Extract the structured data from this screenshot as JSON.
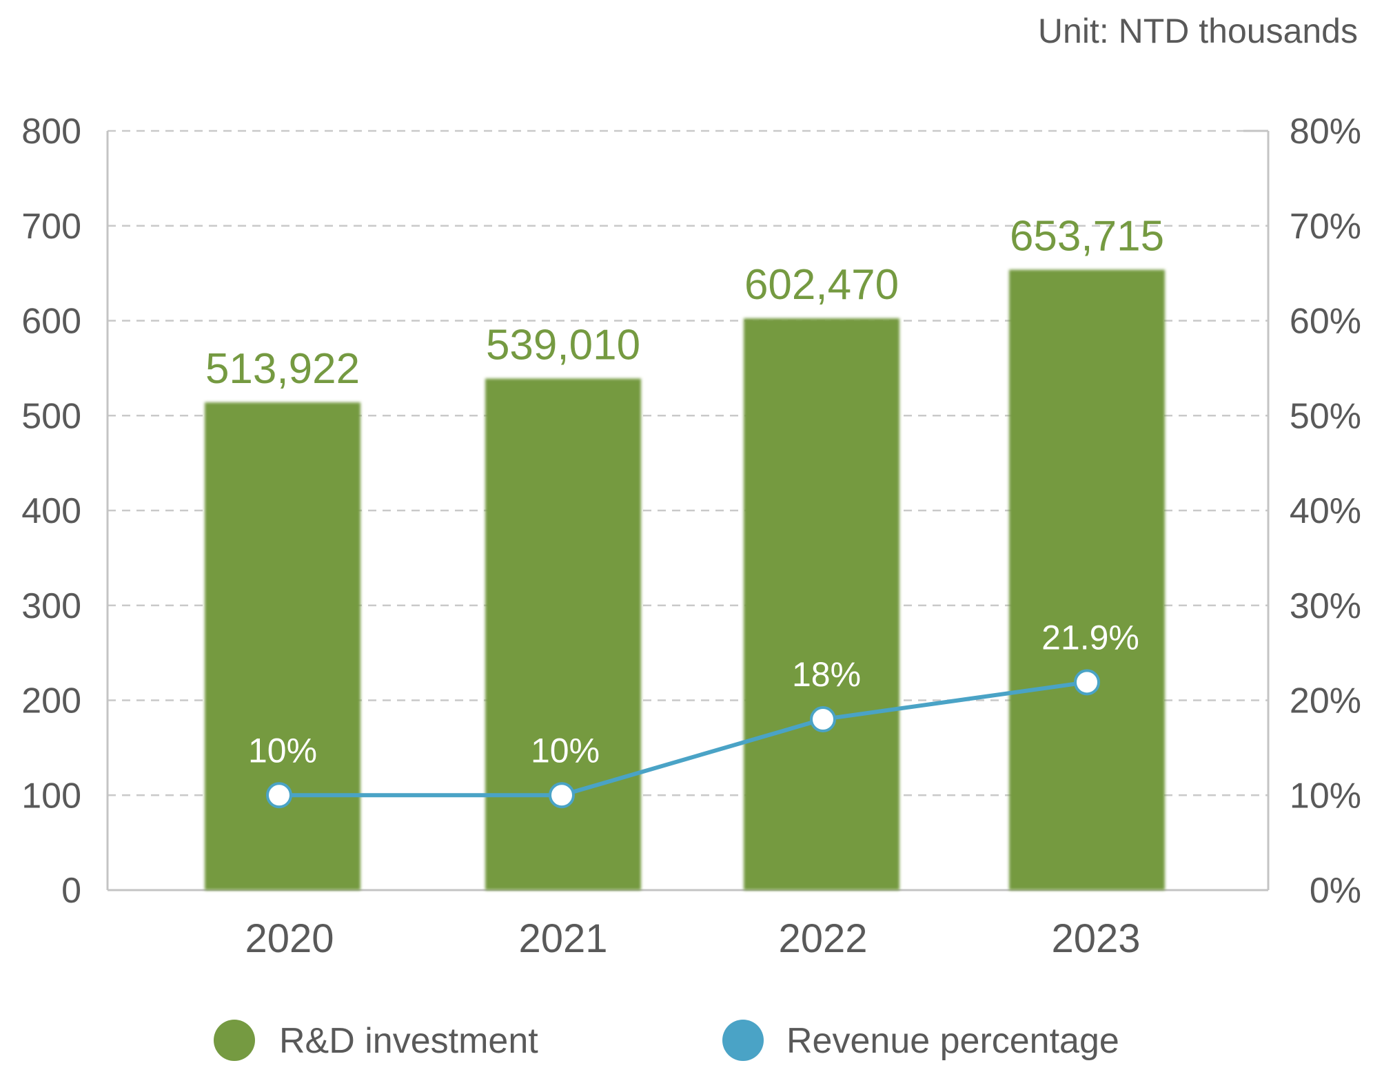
{
  "unit_label": "Unit: NTD thousands",
  "colors": {
    "bar": "#759a41",
    "line": "#4aa3c6",
    "text": "#595959",
    "grid": "#c9c9c9",
    "axis": "#c4c4c4"
  },
  "chart_data": {
    "type": "bar",
    "categories": [
      "2020",
      "2021",
      "2022",
      "2023"
    ],
    "series": [
      {
        "name": "R&D investment",
        "type": "bar",
        "axis": "left",
        "values": [
          513.922,
          539.01,
          602.47,
          653.715
        ],
        "labels": [
          "513,922",
          "539,010",
          "602,470",
          "653,715"
        ]
      },
      {
        "name": "Revenue percentage",
        "type": "line",
        "axis": "right",
        "values": [
          10,
          10,
          18,
          21.9
        ],
        "labels": [
          "10%",
          "10%",
          "18%",
          "21.9%"
        ]
      }
    ],
    "y_left": {
      "min": 0,
      "max": 800,
      "ticks": [
        "0",
        "100",
        "200",
        "300",
        "400",
        "500",
        "600",
        "700",
        "800"
      ]
    },
    "y_right": {
      "min": 0,
      "max": 80,
      "ticks": [
        "0%",
        "10%",
        "20%",
        "30%",
        "40%",
        "50%",
        "60%",
        "70%",
        "80%"
      ]
    },
    "grid": true,
    "legend_position": "bottom"
  }
}
